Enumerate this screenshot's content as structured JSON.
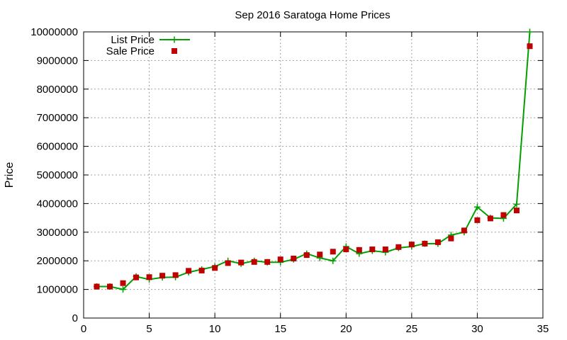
{
  "chart_data": {
    "type": "line",
    "title": "Sep 2016 Saratoga Home Prices",
    "xlabel": "",
    "ylabel": "Price",
    "xlim": [
      0,
      35
    ],
    "ylim": [
      0,
      10000000
    ],
    "xticks": [
      0,
      5,
      10,
      15,
      20,
      25,
      30,
      35
    ],
    "yticks": [
      0,
      1000000,
      2000000,
      3000000,
      4000000,
      5000000,
      6000000,
      7000000,
      8000000,
      9000000,
      10000000
    ],
    "grid": true,
    "legend_position": "top-left",
    "series": [
      {
        "name": "List Price",
        "style": "line-plus",
        "color": "#00a000",
        "x": [
          1,
          2,
          3,
          4,
          5,
          6,
          7,
          8,
          9,
          10,
          11,
          12,
          13,
          14,
          15,
          16,
          17,
          18,
          19,
          20,
          21,
          22,
          23,
          24,
          25,
          26,
          27,
          28,
          29,
          30,
          31,
          32,
          33,
          34
        ],
        "values": [
          1100000,
          1100000,
          1000000,
          1450000,
          1350000,
          1420000,
          1430000,
          1600000,
          1700000,
          1800000,
          2000000,
          1900000,
          2000000,
          1950000,
          1950000,
          2050000,
          2250000,
          2100000,
          2000000,
          2500000,
          2250000,
          2350000,
          2300000,
          2450000,
          2500000,
          2600000,
          2600000,
          2900000,
          3000000,
          3880000,
          3500000,
          3480000,
          3980000,
          10000000
        ]
      },
      {
        "name": "Sale Price",
        "style": "square",
        "color": "#c00000",
        "x": [
          1,
          2,
          3,
          4,
          5,
          6,
          7,
          8,
          9,
          10,
          11,
          12,
          13,
          14,
          15,
          16,
          17,
          18,
          19,
          20,
          21,
          22,
          23,
          24,
          25,
          26,
          27,
          28,
          29,
          30,
          31,
          32,
          33,
          34
        ],
        "values": [
          1100000,
          1100000,
          1220000,
          1420000,
          1430000,
          1480000,
          1500000,
          1650000,
          1660000,
          1750000,
          1920000,
          1940000,
          1960000,
          1960000,
          2050000,
          2080000,
          2200000,
          2220000,
          2320000,
          2400000,
          2380000,
          2400000,
          2400000,
          2480000,
          2570000,
          2600000,
          2650000,
          2780000,
          3060000,
          3420000,
          3480000,
          3600000,
          3760000,
          9500000
        ]
      }
    ]
  }
}
